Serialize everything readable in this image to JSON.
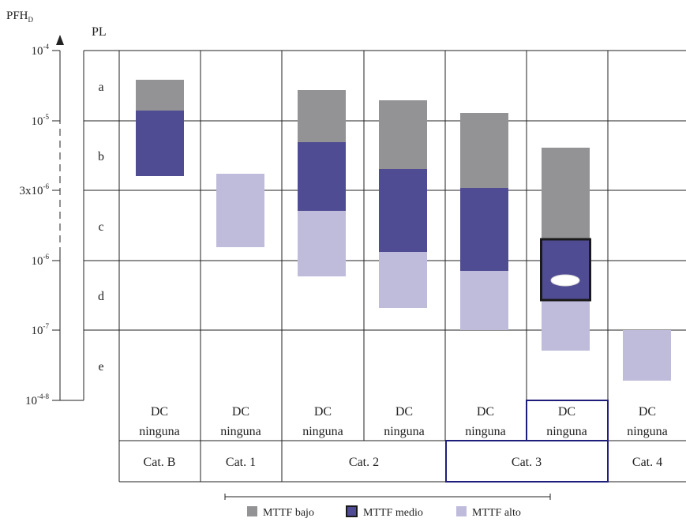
{
  "axis": {
    "title": "PFH",
    "title_sub": "D",
    "pl_title": "PL",
    "ticks": [
      "10",
      "10",
      "3x10",
      "10",
      "10",
      "10"
    ],
    "tick_exps": [
      "-4",
      "-5",
      "-6",
      "-6",
      "-7",
      "-4-8"
    ]
  },
  "pl_levels": [
    "a",
    "b",
    "c",
    "d",
    "e"
  ],
  "columns": [
    {
      "dc_line1": "DC",
      "dc_line2": "ninguna"
    },
    {
      "dc_line1": "DC",
      "dc_line2": "ninguna"
    },
    {
      "dc_line1": "DC",
      "dc_line2": "ninguna"
    },
    {
      "dc_line1": "DC",
      "dc_line2": "ninguna"
    },
    {
      "dc_line1": "DC",
      "dc_line2": "ninguna"
    },
    {
      "dc_line1": "DC",
      "dc_line2": "ninguna"
    },
    {
      "dc_line1": "DC",
      "dc_line2": "ninguna"
    }
  ],
  "categories": [
    "Cat. B",
    "Cat. 1",
    "Cat. 2",
    "Cat. 3",
    "Cat. 4"
  ],
  "legend": {
    "items": [
      {
        "label": "MTTF bajo",
        "color": "#939396"
      },
      {
        "label": "MTTF medio",
        "color": "#504c93"
      },
      {
        "label": "MTTF alto",
        "color": "#bfbcdb"
      }
    ]
  },
  "colors": {
    "bajo": "#939396",
    "medio": "#504c93",
    "alto": "#bfbcdb",
    "highlight_border": "#1f1d7a",
    "marker": "#ffffff"
  },
  "highlight": {
    "column": 6,
    "category": "Cat. 3",
    "segment": "MTTF medio"
  }
}
